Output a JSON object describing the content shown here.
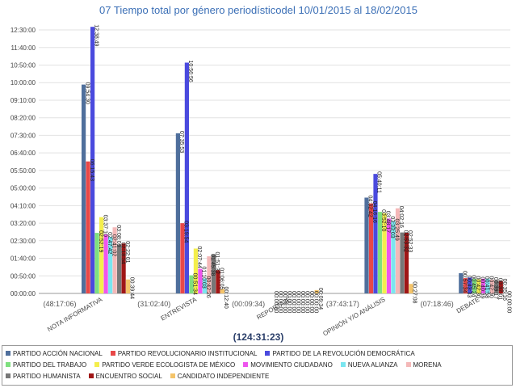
{
  "chart_data": {
    "type": "bar",
    "title": "07 Tiempo total por género periodísticodel 10/01/2015 al 18/02/2015",
    "xlabel": "",
    "ylabel": "",
    "ylim_seconds": [
      0,
      46800
    ],
    "y_tick_labels": [
      "00:00:00",
      "00:50:00",
      "01:40:00",
      "02:30:00",
      "03:20:00",
      "04:10:00",
      "05:00:00",
      "05:50:00",
      "06:40:00",
      "07:30:00",
      "08:20:00",
      "09:10:00",
      "10:00:00",
      "10:50:00",
      "11:40:00",
      "12:30:00"
    ],
    "grand_total": "(124:31:23)",
    "categories": [
      {
        "name": "NOTA INFORMATIVA",
        "total": "(48:17:06)"
      },
      {
        "name": "ENTREVISTA",
        "total": "(31:02:40)"
      },
      {
        "name": "REPORTAJE",
        "total": "(00:09:34)"
      },
      {
        "name": "OPINIÓN Y/O ANÁLISIS",
        "total": "(37:43:17)"
      },
      {
        "name": "DEBATE",
        "total": "(07:18:46)"
      }
    ],
    "series": [
      {
        "name": "PARTIDO ACCIÓN NACIONAL",
        "color": "#4f6f9c",
        "labels": [
          "09:54:30",
          "07:35:53",
          "00:00:00",
          "04:32:42",
          "00:57:34"
        ]
      },
      {
        "name": "PARTIDO REVOLUCIONARIO INSTITUCIONAL",
        "color": "#e84848",
        "labels": [
          "06:15:43",
          "03:19:54",
          "00:00:00",
          "04:16:16",
          "00:43:33"
        ]
      },
      {
        "name": "PARTIDO DE LA REVOLUCIÓN DEMOCRÁTICA",
        "color": "#4a4ade",
        "labels": [
          "12:38:49",
          "10:56:56",
          "00:00:00",
          "05:40:11",
          "00:45:24"
        ]
      },
      {
        "name": "PARTIDO DEL TRABAJO",
        "color": "#7ee07e",
        "labels": [
          "02:52:19",
          "00:51:34",
          "00:00:00",
          "03:52:10",
          "00:42:30"
        ]
      },
      {
        "name": "PARTIDO VERDE ECOLOGISTA DE MÉXICO",
        "color": "#f4ee4c",
        "labels": [
          "03:37:10",
          "02:07:44",
          "00:00:00",
          "03:48:17",
          "00:40:39"
        ]
      },
      {
        "name": "MOVIMIENTO CIUDADANO",
        "color": "#ee55ee",
        "labels": [
          "02:47:42",
          "01:10:03",
          "00:00:00",
          "03:33:03",
          "00:41:58"
        ]
      },
      {
        "name": "NUEVA ALIANZA",
        "color": "#7ae6f0",
        "labels": [
          "02:41:02",
          "00:42:26",
          "00:00:00",
          "03:25:49",
          "00:42:30"
        ]
      },
      {
        "name": "MORENA",
        "color": "#f4b8b8",
        "labels": [
          "03:08:09",
          "01:45:38",
          "00:00:00",
          "04:02:16",
          "00:39:17"
        ]
      },
      {
        "name": "PARTIDO HUMANISTA",
        "color": "#777777",
        "labels": [
          "02:18:54",
          "01:51:32",
          "00:00:00",
          "02:53:32",
          "00:37:01"
        ]
      },
      {
        "name": "ENCUENTRO SOCIAL",
        "color": "#a01616",
        "labels": [
          "02:22:01",
          "01:06:05",
          "00:00:00",
          "02:52:33",
          "00:35:16"
        ]
      },
      {
        "name": "CANDIDATO INDEPENDIENTE",
        "color": "#f4c46a",
        "labels": [
          "00:39:44",
          "00:12:40",
          "00:09:34",
          "00:27:08",
          "00:00:00"
        ]
      }
    ]
  }
}
